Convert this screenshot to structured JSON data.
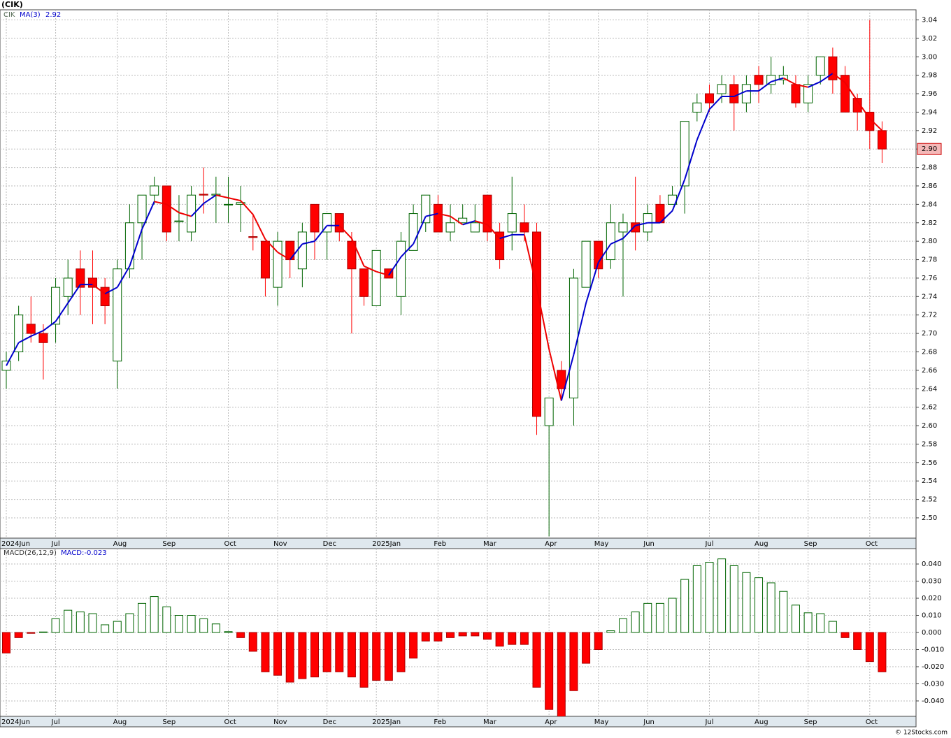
{
  "chart_data": [
    {
      "type": "candlestick",
      "title": "(CIK)",
      "symbol": "CIK",
      "categories": [
        "2024Jun",
        null,
        null,
        null,
        "Jul",
        null,
        null,
        null,
        null,
        "Aug",
        null,
        null,
        null,
        "Sep",
        null,
        null,
        null,
        null,
        "Oct",
        null,
        null,
        null,
        "Nov",
        null,
        null,
        null,
        "Dec",
        null,
        null,
        null,
        "2025Jan",
        null,
        null,
        null,
        null,
        "Feb",
        null,
        null,
        null,
        "Mar",
        null,
        null,
        null,
        null,
        "Apr",
        null,
        null,
        null,
        "May",
        null,
        null,
        null,
        "Jun",
        null,
        null,
        null,
        null,
        "Jul",
        null,
        null,
        null,
        "Aug",
        null,
        null,
        null,
        "Sep",
        null,
        null,
        null,
        null,
        "Oct",
        null
      ],
      "open": [
        2.66,
        2.68,
        2.71,
        2.7,
        2.71,
        2.74,
        2.77,
        2.76,
        2.75,
        2.67,
        2.77,
        2.82,
        2.85,
        2.86,
        2.821,
        2.81,
        2.851,
        2.85,
        2.84,
        2.84,
        2.805,
        2.8,
        2.75,
        2.8,
        2.77,
        2.84,
        2.81,
        2.83,
        2.8,
        2.77,
        2.73,
        2.77,
        2.74,
        2.79,
        2.82,
        2.84,
        2.81,
        2.82,
        2.81,
        2.85,
        2.81,
        2.81,
        2.82,
        2.81,
        2.6,
        2.66,
        2.63,
        2.75,
        2.8,
        2.78,
        2.81,
        2.82,
        2.81,
        2.84,
        2.84,
        2.86,
        2.94,
        2.96,
        2.96,
        2.97,
        2.95,
        2.98,
        2.97,
        2.975,
        2.97,
        2.95,
        2.98,
        3.0,
        2.98,
        2.955,
        2.94,
        2.92
      ],
      "high": [
        2.68,
        2.73,
        2.74,
        2.71,
        2.76,
        2.78,
        2.79,
        2.79,
        2.76,
        2.78,
        2.84,
        2.85,
        2.87,
        2.86,
        2.85,
        2.86,
        2.88,
        2.87,
        2.87,
        2.86,
        2.83,
        2.8,
        2.81,
        2.8,
        2.82,
        2.84,
        2.83,
        2.83,
        2.81,
        2.77,
        2.79,
        2.77,
        2.81,
        2.84,
        2.85,
        2.85,
        2.84,
        2.84,
        2.84,
        2.85,
        2.82,
        2.87,
        2.84,
        2.82,
        2.63,
        2.67,
        2.77,
        2.8,
        2.8,
        2.84,
        2.83,
        2.87,
        2.84,
        2.85,
        2.86,
        2.93,
        2.96,
        2.97,
        2.98,
        2.98,
        2.98,
        2.99,
        3.0,
        2.99,
        2.98,
        2.98,
        3.0,
        3.01,
        2.99,
        2.96,
        3.04,
        2.93
      ],
      "low": [
        2.64,
        2.67,
        2.69,
        2.65,
        2.69,
        2.72,
        2.72,
        2.71,
        2.71,
        2.64,
        2.76,
        2.78,
        2.84,
        2.8,
        2.8,
        2.8,
        2.83,
        2.82,
        2.82,
        2.81,
        2.79,
        2.74,
        2.73,
        2.76,
        2.75,
        2.78,
        2.78,
        2.8,
        2.7,
        2.73,
        2.73,
        2.76,
        2.72,
        2.79,
        2.81,
        2.81,
        2.8,
        2.82,
        2.81,
        2.8,
        2.77,
        2.79,
        2.8,
        2.59,
        2.48,
        2.63,
        2.6,
        2.75,
        2.76,
        2.77,
        2.74,
        2.79,
        2.8,
        2.82,
        2.84,
        2.83,
        2.93,
        2.94,
        2.95,
        2.92,
        2.94,
        2.95,
        2.96,
        2.97,
        2.945,
        2.94,
        2.97,
        2.96,
        2.94,
        2.92,
        2.9,
        2.885
      ],
      "close": [
        2.67,
        2.72,
        2.7,
        2.69,
        2.75,
        2.76,
        2.75,
        2.75,
        2.73,
        2.77,
        2.82,
        2.85,
        2.86,
        2.81,
        2.822,
        2.85,
        2.85,
        2.851,
        2.84,
        2.842,
        2.804,
        2.76,
        2.8,
        2.78,
        2.81,
        2.81,
        2.83,
        2.81,
        2.77,
        2.74,
        2.79,
        2.76,
        2.8,
        2.83,
        2.85,
        2.81,
        2.82,
        2.825,
        2.82,
        2.81,
        2.78,
        2.83,
        2.81,
        2.61,
        2.63,
        2.64,
        2.76,
        2.8,
        2.77,
        2.82,
        2.82,
        2.81,
        2.83,
        2.82,
        2.85,
        2.93,
        2.95,
        2.95,
        2.97,
        2.95,
        2.97,
        2.97,
        2.98,
        2.98,
        2.95,
        2.97,
        3.0,
        2.975,
        2.94,
        2.94,
        2.92,
        2.9
      ],
      "ma": {
        "name": "MA(3)",
        "value_label": 2.92,
        "up_color": "#0000cc",
        "down_color": "#ee0000",
        "values": [
          2.665,
          2.69,
          2.697,
          2.703,
          2.713,
          2.733,
          2.753,
          2.753,
          2.743,
          2.75,
          2.773,
          2.813,
          2.843,
          2.84,
          2.831,
          2.827,
          2.841,
          2.85,
          2.847,
          2.844,
          2.829,
          2.802,
          2.788,
          2.78,
          2.797,
          2.8,
          2.817,
          2.817,
          2.803,
          2.773,
          2.767,
          2.763,
          2.783,
          2.797,
          2.827,
          2.83,
          2.827,
          2.818,
          2.822,
          2.818,
          2.803,
          2.807,
          2.807,
          2.75,
          2.683,
          2.627,
          2.677,
          2.733,
          2.777,
          2.797,
          2.803,
          2.817,
          2.82,
          2.82,
          2.833,
          2.867,
          2.91,
          2.943,
          2.957,
          2.957,
          2.963,
          2.963,
          2.973,
          2.977,
          2.97,
          2.967,
          2.973,
          2.982,
          2.972,
          2.952,
          2.933,
          2.92
        ]
      },
      "up_color": "#006400",
      "down_color": "#ff0000",
      "grid": true,
      "ylim": [
        2.478,
        3.051
      ],
      "yticks": [
        {
          "value": 2.5,
          "label": "2.50"
        },
        {
          "value": 2.52,
          "label": "2.52"
        },
        {
          "value": 2.54,
          "label": "2.54"
        },
        {
          "value": 2.56,
          "label": "2.56"
        },
        {
          "value": 2.58,
          "label": "2.58"
        },
        {
          "value": 2.6,
          "label": "2.60"
        },
        {
          "value": 2.62,
          "label": "2.62"
        },
        {
          "value": 2.64,
          "label": "2.64"
        },
        {
          "value": 2.66,
          "label": "2.66"
        },
        {
          "value": 2.68,
          "label": "2.68"
        },
        {
          "value": 2.7,
          "label": "2.70"
        },
        {
          "value": 2.72,
          "label": "2.72"
        },
        {
          "value": 2.74,
          "label": "2.74"
        },
        {
          "value": 2.76,
          "label": "2.76"
        },
        {
          "value": 2.78,
          "label": "2.78"
        },
        {
          "value": 2.8,
          "label": "2.80"
        },
        {
          "value": 2.82,
          "label": "2.82"
        },
        {
          "value": 2.84,
          "label": "2.84"
        },
        {
          "value": 2.86,
          "label": "2.86"
        },
        {
          "value": 2.88,
          "label": "2.88"
        },
        {
          "value": 2.9,
          "label": "2.90"
        },
        {
          "value": 2.92,
          "label": "2.92"
        },
        {
          "value": 2.94,
          "label": "2.94"
        },
        {
          "value": 2.96,
          "label": "2.96"
        },
        {
          "value": 2.98,
          "label": "2.98"
        },
        {
          "value": 3.0,
          "label": "3.00"
        },
        {
          "value": 3.02,
          "label": "3.02"
        },
        {
          "value": 3.04,
          "label": "3.04"
        }
      ],
      "last_price": {
        "value": 2.9,
        "label": "2.90"
      }
    },
    {
      "type": "bar",
      "title": "MACD(26,12,9)",
      "value_text": "MACD:-0.023",
      "up_color": "#006400",
      "down_color": "#ff0000",
      "grid": true,
      "values": [
        -0.012,
        -0.003,
        -0.0005,
        0.0003,
        0.008,
        0.013,
        0.012,
        0.011,
        0.0045,
        0.0065,
        0.011,
        0.017,
        0.021,
        0.015,
        0.01,
        0.01,
        0.008,
        0.005,
        0.0005,
        -0.003,
        -0.011,
        -0.023,
        -0.025,
        -0.029,
        -0.027,
        -0.026,
        -0.023,
        -0.023,
        -0.026,
        -0.032,
        -0.028,
        -0.028,
        -0.023,
        -0.015,
        -0.005,
        -0.005,
        -0.003,
        -0.002,
        -0.002,
        -0.004,
        -0.008,
        -0.007,
        -0.007,
        -0.032,
        -0.045,
        -0.05,
        -0.034,
        -0.018,
        -0.01,
        0.001,
        0.008,
        0.012,
        0.017,
        0.017,
        0.02,
        0.031,
        0.039,
        0.041,
        0.043,
        0.039,
        0.035,
        0.032,
        0.029,
        0.024,
        0.016,
        0.0115,
        0.011,
        0.0065,
        -0.003,
        -0.01,
        -0.017,
        -0.023
      ],
      "ylim": [
        -0.049,
        0.049
      ],
      "yticks": [
        {
          "value": -0.04,
          "label": "-0.040"
        },
        {
          "value": -0.03,
          "label": "-0.030"
        },
        {
          "value": -0.02,
          "label": "-0.020"
        },
        {
          "value": -0.01,
          "label": "-0.010"
        },
        {
          "value": 0,
          "label": "0.000"
        },
        {
          "value": 0.01,
          "label": "0.010"
        },
        {
          "value": 0.02,
          "label": "0.020"
        },
        {
          "value": 0.03,
          "label": "0.030"
        },
        {
          "value": 0.04,
          "label": "0.040"
        }
      ]
    }
  ],
  "footer": "© 12Stocks.com"
}
